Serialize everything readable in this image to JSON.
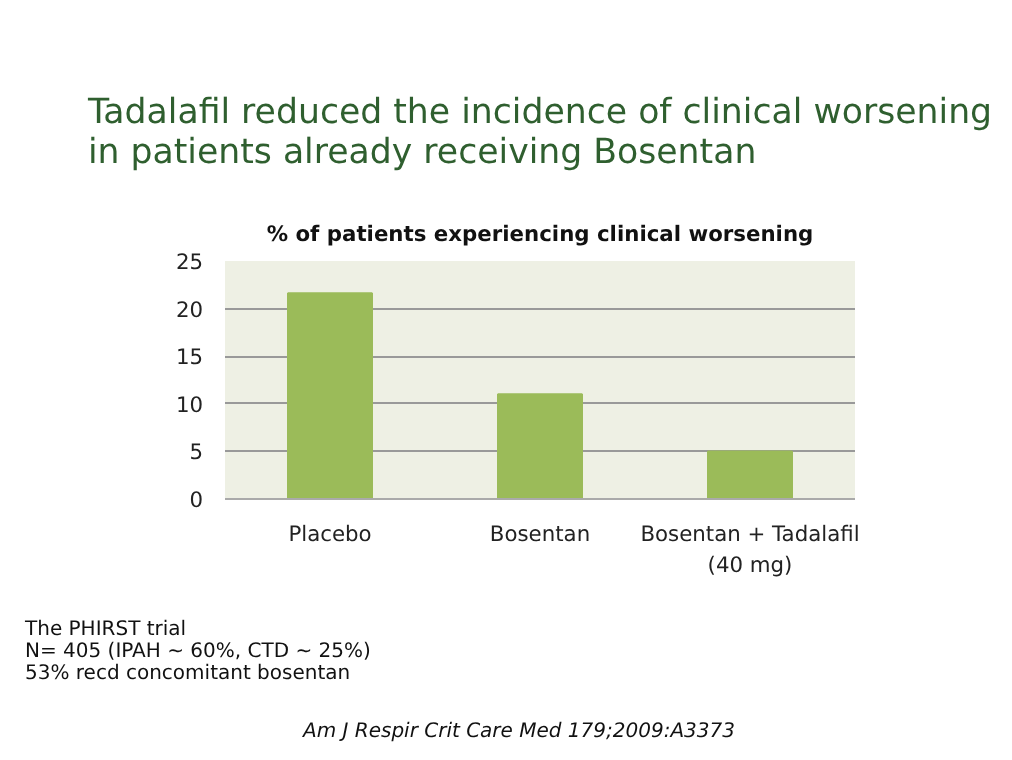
{
  "chart_data": {
    "type": "bar",
    "title": "Tadalafil reduced the incidence of clinical worsening\nin patients already receiving Bosentan",
    "subtitle": "% of patients experiencing clinical worsening",
    "categories": [
      "Placebo",
      "Bosentan",
      "Bosentan + Tadalafil\n(40 mg)"
    ],
    "values": [
      21.6,
      11,
      5
    ],
    "color": "#9bbb59",
    "ylim": [
      0,
      25
    ],
    "yticks": [
      0,
      5,
      10,
      15,
      20,
      25
    ],
    "grid": "y",
    "annotations": [
      "The PHIRST trial\nN= 405 (IPAH ~ 60%, CTD ~ 25%)\n53% recd concomitant bosentan",
      "Am J Respir Crit Care Med 179;2009:A3373"
    ]
  }
}
